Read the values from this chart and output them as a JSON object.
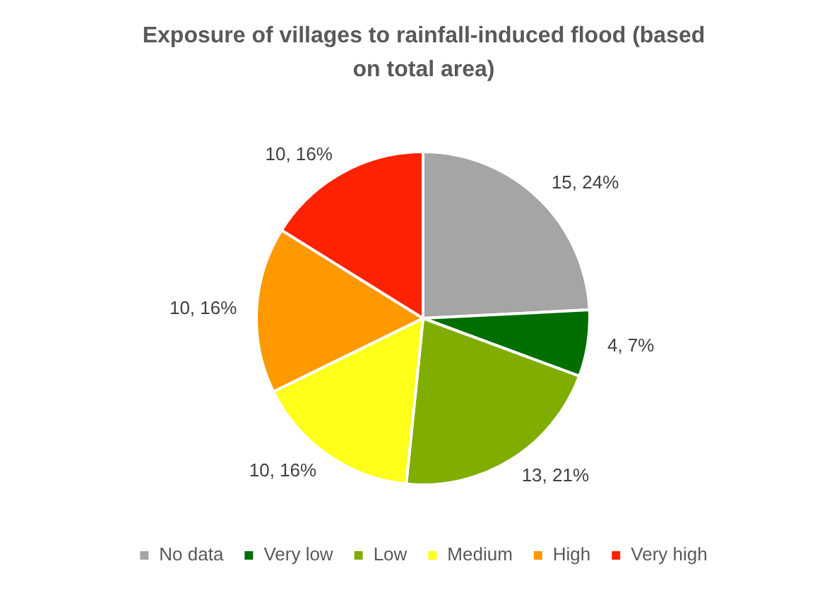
{
  "chart_data": {
    "type": "pie",
    "title": "Exposure of villages to rainfall-induced flood (based on total area)",
    "categories": [
      "No data",
      "Very low",
      "Low",
      "Medium",
      "High",
      "Very high"
    ],
    "values": [
      15,
      4,
      13,
      10,
      10,
      10
    ],
    "colors": [
      "#a5a5a5",
      "#006e00",
      "#7fae00",
      "#ffff1a",
      "#ff9900",
      "#ff2200"
    ],
    "value_labels": [
      "15, 24%",
      "4, 7%",
      "13, 21%",
      "10, 16%",
      "10, 16%",
      "10, 16%"
    ],
    "legend": "bottom"
  }
}
